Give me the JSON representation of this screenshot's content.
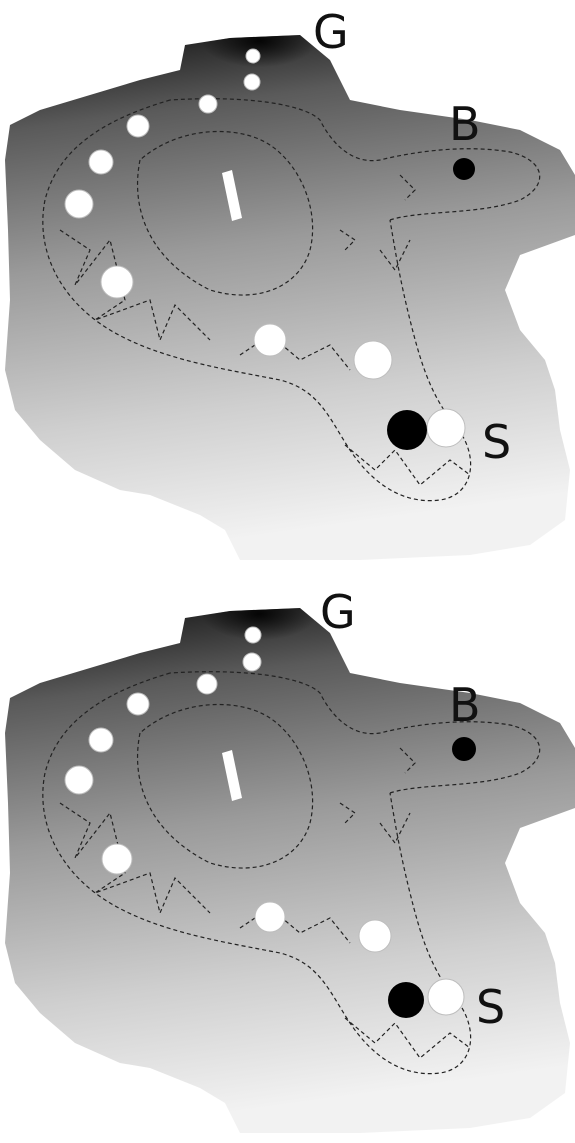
{
  "panels": [
    {
      "labels": {
        "goal": "G",
        "b": "B",
        "start": "S"
      }
    },
    {
      "labels": {
        "goal": "G",
        "b": "B",
        "start": "S"
      }
    }
  ],
  "colors": {
    "terrain_dark": "#111111",
    "terrain_light": "#f4f4f4",
    "obstacle_white": "#ffffff",
    "marker_black": "#000000",
    "path_line": "#222222"
  }
}
